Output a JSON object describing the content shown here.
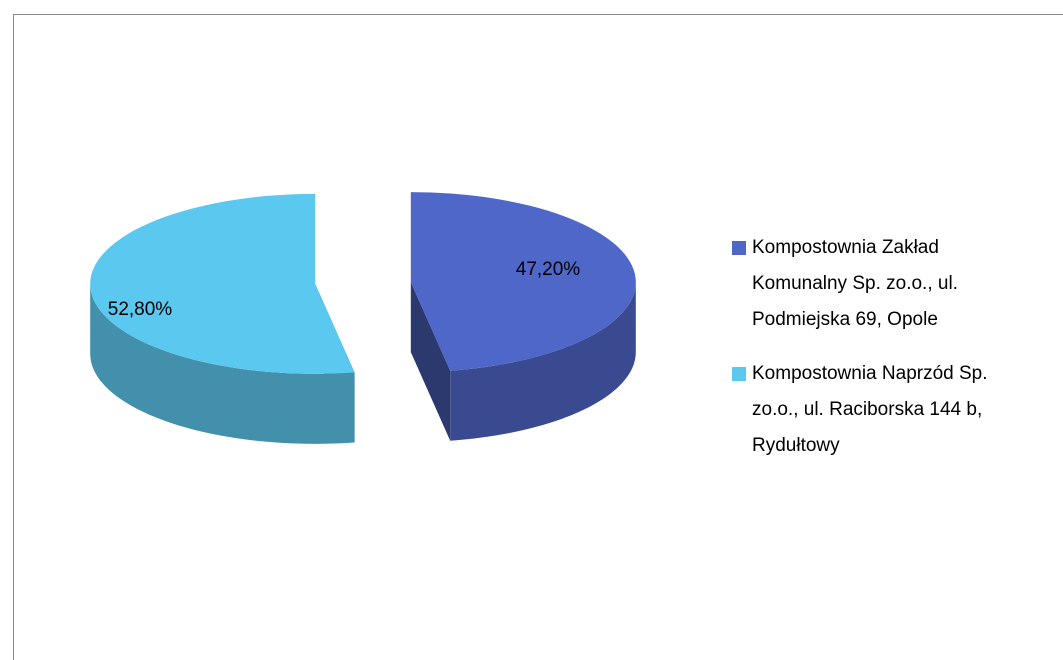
{
  "chart_data": {
    "type": "pie",
    "categories": [
      "Kompostownia Zakład Komunalny Sp. zo.o., ul. Podmiejska 69, Opole",
      "Kompostownia Naprzód Sp. zo.o., ul. Raciborska 144 b, Rydułtowy"
    ],
    "values": [
      47.2,
      52.8
    ],
    "value_labels": [
      "47,20%",
      "52,80%"
    ],
    "colors": [
      "#4f67c8",
      "#5bc8ef"
    ],
    "legend": "right"
  }
}
